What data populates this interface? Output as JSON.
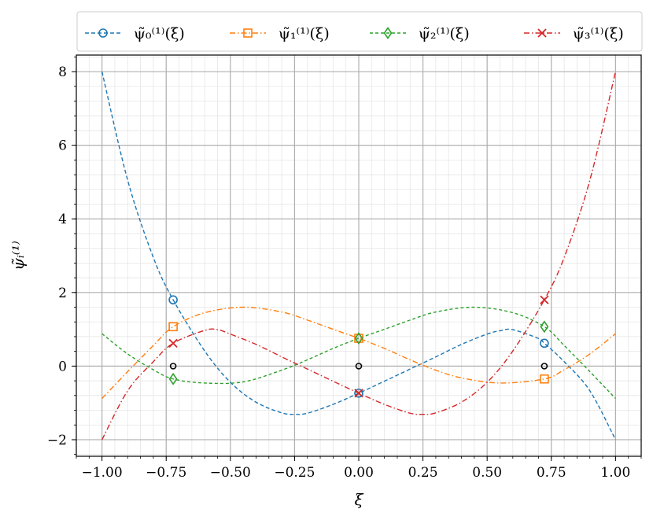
{
  "chart_data": {
    "type": "line",
    "title": "",
    "xlabel": "ξ",
    "ylabel": "ψ̃ᵢ⁽¹⁾",
    "xlim": [
      -1.1,
      1.1
    ],
    "ylim": [
      -2.45,
      8.45
    ],
    "grid": true,
    "minor_grid": true,
    "legend_placement": "top, above plot, 4 columns",
    "x_ticks": [
      -1.0,
      -0.75,
      -0.5,
      -0.25,
      0.0,
      0.25,
      0.5,
      0.75,
      1.0
    ],
    "x_tick_labels": [
      "−1.00",
      "−0.75",
      "−0.50",
      "−0.25",
      "0.00",
      "0.25",
      "0.50",
      "0.75",
      "1.00"
    ],
    "y_ticks": [
      -2,
      0,
      2,
      4,
      6,
      8
    ],
    "y_tick_labels": [
      "−2",
      "0",
      "2",
      "4",
      "6",
      "8"
    ],
    "nodes": {
      "x": [
        -0.7228,
        0.0,
        0.7228
      ],
      "y": [
        0,
        0,
        0
      ],
      "color": "#000000",
      "marker": "circle"
    },
    "series": [
      {
        "name": "ψ̃₀⁽¹⁾(ξ)",
        "color": "#1f77b4",
        "dash": "5,3",
        "marker": "circle",
        "x": [
          -1.0,
          -0.9,
          -0.8,
          -0.7228,
          -0.6,
          -0.5,
          -0.4,
          -0.3,
          -0.25,
          -0.2,
          -0.1,
          0.0,
          0.1,
          0.2,
          0.3,
          0.4,
          0.5,
          0.55,
          0.6,
          0.7,
          0.7228,
          0.8,
          0.9,
          1.0
        ],
        "y": [
          8.0,
          5.05,
          2.95,
          1.8,
          0.41,
          -0.44,
          -0.98,
          -1.27,
          -1.31,
          -1.28,
          -1.04,
          -0.735,
          -0.41,
          -0.08,
          0.25,
          0.59,
          0.87,
          0.96,
          0.99,
          0.75,
          0.62,
          0.12,
          -0.67,
          -2.0
        ],
        "markers_x": [
          -0.7228,
          0.0,
          0.7228
        ],
        "markers_y": [
          1.8,
          -0.735,
          0.62
        ]
      },
      {
        "name": "ψ̃₁⁽¹⁾(ξ)",
        "color": "#ff7f0e",
        "dash": "7,3,1.5,3",
        "marker": "square",
        "x": [
          -1.0,
          -0.9,
          -0.8,
          -0.7228,
          -0.6,
          -0.45,
          -0.3,
          -0.2,
          -0.1,
          0.0,
          0.1,
          0.2,
          0.3,
          0.4,
          0.55,
          0.7228,
          0.8,
          0.9,
          1.0
        ],
        "y": [
          -0.88,
          -0.15,
          0.56,
          1.07,
          1.45,
          1.6,
          1.47,
          1.25,
          1.0,
          0.755,
          0.48,
          0.17,
          -0.11,
          -0.32,
          -0.46,
          -0.35,
          -0.1,
          0.33,
          0.88
        ],
        "markers_x": [
          -0.7228,
          0.0,
          0.7228
        ],
        "markers_y": [
          1.07,
          0.755,
          -0.35
        ]
      },
      {
        "name": "ψ̃₂⁽¹⁾(ξ)",
        "color": "#2ca02c",
        "dash": "4,3",
        "marker": "diamond",
        "x": [
          -1.0,
          -0.9,
          -0.8,
          -0.7228,
          -0.6,
          -0.45,
          -0.3,
          -0.2,
          -0.1,
          0.0,
          0.1,
          0.2,
          0.3,
          0.45,
          0.6,
          0.7228,
          0.8,
          0.9,
          1.0
        ],
        "y": [
          0.88,
          0.33,
          -0.1,
          -0.35,
          -0.46,
          -0.43,
          -0.11,
          0.17,
          0.48,
          0.755,
          1.0,
          1.25,
          1.47,
          1.6,
          1.45,
          1.07,
          0.56,
          -0.15,
          -0.88
        ],
        "markers_x": [
          -0.7228,
          0.0,
          0.7228
        ],
        "markers_y": [
          -0.35,
          0.755,
          1.07
        ]
      },
      {
        "name": "ψ̃₃⁽¹⁾(ξ)",
        "color": "#d62728",
        "dash": "7,3,1.5,3",
        "marker": "x",
        "x": [
          -1.0,
          -0.9,
          -0.8,
          -0.7228,
          -0.6,
          -0.55,
          -0.5,
          -0.4,
          -0.3,
          -0.2,
          -0.1,
          0.0,
          0.1,
          0.2,
          0.25,
          0.3,
          0.4,
          0.5,
          0.6,
          0.7228,
          0.8,
          0.9,
          1.0
        ],
        "y": [
          -2.0,
          -0.67,
          0.12,
          0.62,
          0.97,
          0.99,
          0.87,
          0.59,
          0.25,
          -0.08,
          -0.41,
          -0.735,
          -1.04,
          -1.28,
          -1.31,
          -1.27,
          -0.98,
          -0.44,
          0.41,
          1.8,
          2.95,
          5.05,
          8.0
        ],
        "markers_x": [
          -0.7228,
          0.0,
          0.7228
        ],
        "markers_y": [
          0.62,
          -0.735,
          1.8
        ]
      }
    ]
  }
}
